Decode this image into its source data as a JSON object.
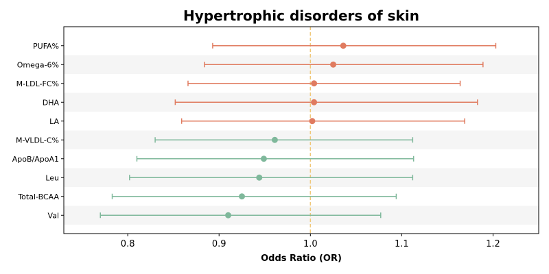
{
  "chart_data": {
    "type": "scatter",
    "subtype": "forest-plot",
    "title": "Hypertrophic disorders of skin",
    "xlabel": "Odds Ratio (OR)",
    "ylabel": "",
    "xlim": [
      0.73,
      1.25
    ],
    "xticks": [
      0.8,
      0.9,
      1.0,
      1.1,
      1.2
    ],
    "xtick_labels": [
      "0.8",
      "0.9",
      "1.0",
      "1.1",
      "1.2"
    ],
    "reference_line": 1.0,
    "reference_line_color": "#f0c87a",
    "grid": false,
    "alternating_row_shading": "#f5f5f5",
    "colors": {
      "above_one": "#e07b5f",
      "below_one": "#7fb89b"
    },
    "rows": [
      {
        "label": "PUFA%",
        "or": 1.036,
        "lower": 0.893,
        "upper": 1.203
      },
      {
        "label": "Omega-6%",
        "or": 1.025,
        "lower": 0.884,
        "upper": 1.189
      },
      {
        "label": "M-LDL-FC%",
        "or": 1.004,
        "lower": 0.866,
        "upper": 1.164
      },
      {
        "label": "DHA",
        "or": 1.004,
        "lower": 0.852,
        "upper": 1.183
      },
      {
        "label": "LA",
        "or": 1.002,
        "lower": 0.859,
        "upper": 1.169
      },
      {
        "label": "M-VLDL-C%",
        "or": 0.961,
        "lower": 0.83,
        "upper": 1.112
      },
      {
        "label": "ApoB/ApoA1",
        "or": 0.949,
        "lower": 0.81,
        "upper": 1.113
      },
      {
        "label": "Leu",
        "or": 0.944,
        "lower": 0.802,
        "upper": 1.112
      },
      {
        "label": "Total-BCAA",
        "or": 0.925,
        "lower": 0.783,
        "upper": 1.094
      },
      {
        "label": "Val",
        "or": 0.91,
        "lower": 0.77,
        "upper": 1.077
      }
    ]
  }
}
